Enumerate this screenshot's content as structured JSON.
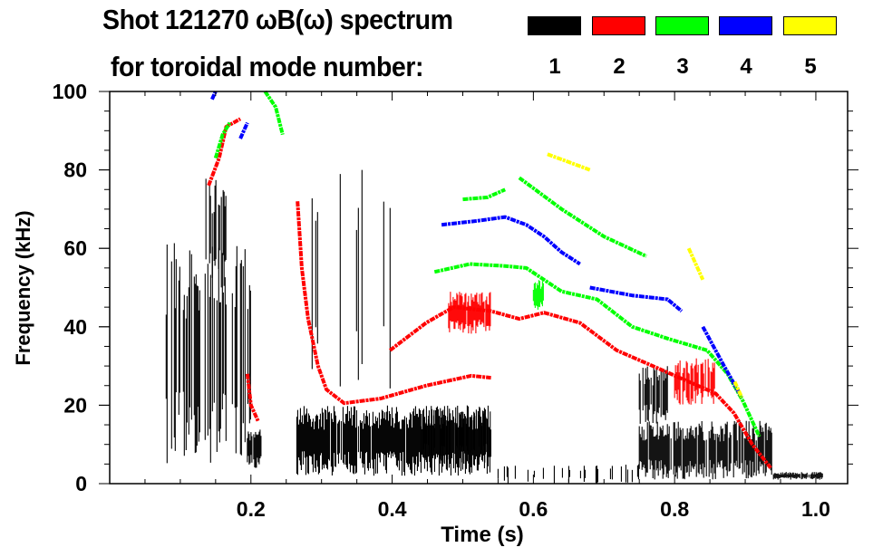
{
  "chart_data": {
    "type": "heatmap",
    "title": "Shot 121270 ωB(ω) spectrum",
    "subtitle": "for toroidal mode number:",
    "xlabel": "Time (s)",
    "ylabel": "Frequency (kHz)",
    "xlim": [
      0,
      1.045
    ],
    "ylim": [
      0,
      100
    ],
    "xticks": [
      0.2,
      0.4,
      0.6,
      0.8,
      1.0
    ],
    "xtick_labels": [
      "0.2",
      "0.4",
      "0.6",
      "0.8",
      "1.0"
    ],
    "yticks": [
      0,
      20,
      40,
      60,
      80,
      100
    ],
    "ytick_labels": [
      "0",
      "20",
      "40",
      "60",
      "80",
      "100"
    ],
    "legend": {
      "placement": "top-right",
      "entries": [
        {
          "mode": "1",
          "color": "#000000"
        },
        {
          "mode": "2",
          "color": "#ff0000"
        },
        {
          "mode": "3",
          "color": "#00ff00"
        },
        {
          "mode": "4",
          "color": "#0000ff"
        },
        {
          "mode": "5",
          "color": "#ffff00"
        }
      ]
    },
    "series": [
      {
        "name": "n=1",
        "color": "#000000",
        "blobs": [
          {
            "t": [
              0.08,
              0.2
            ],
            "f": [
              5,
              62
            ],
            "density": 0.5
          },
          {
            "t": [
              0.135,
              0.165
            ],
            "f": [
              50,
              78
            ],
            "density": 0.6
          },
          {
            "t": [
              0.195,
              0.215
            ],
            "f": [
              4,
              14
            ],
            "density": 0.9
          },
          {
            "t": [
              0.265,
              0.54
            ],
            "f": [
              2,
              20
            ],
            "density": 0.95
          },
          {
            "t": [
              0.27,
              0.4
            ],
            "f": [
              20,
              80
            ],
            "density": 0.12
          },
          {
            "t": [
              0.44,
              0.54
            ],
            "f": [
              5,
              20
            ],
            "density": 0.7
          },
          {
            "t": [
              0.75,
              0.94
            ],
            "f": [
              1,
              16
            ],
            "density": 0.85
          },
          {
            "t": [
              0.75,
              0.79
            ],
            "f": [
              15,
              30
            ],
            "density": 0.8
          },
          {
            "t": [
              0.94,
              1.01
            ],
            "f": [
              1,
              3
            ],
            "density": 0.9
          },
          {
            "t": [
              0.55,
              0.75
            ],
            "f": [
              0,
              5
            ],
            "density": 0.15
          }
        ],
        "tracks": []
      },
      {
        "name": "n=2",
        "color": "#ff0000",
        "blobs": [
          {
            "t": [
              0.48,
              0.54
            ],
            "f": [
              38,
              49
            ],
            "density": 0.9
          },
          {
            "t": [
              0.8,
              0.86
            ],
            "f": [
              20,
              32
            ],
            "density": 0.7
          }
        ],
        "tracks": [
          [
            [
              0.266,
              72
            ],
            [
              0.272,
              55
            ],
            [
              0.281,
              42
            ],
            [
              0.295,
              30
            ],
            [
              0.307,
              24
            ],
            [
              0.332,
              20.5
            ],
            [
              0.384,
              21.7
            ],
            [
              0.448,
              25
            ],
            [
              0.512,
              27.5
            ],
            [
              0.54,
              27
            ]
          ],
          [
            [
              0.397,
              34
            ],
            [
              0.448,
              41
            ],
            [
              0.487,
              45
            ],
            [
              0.54,
              44
            ],
            [
              0.58,
              42
            ],
            [
              0.615,
              43.6
            ],
            [
              0.666,
              41
            ],
            [
              0.718,
              34
            ],
            [
              0.769,
              30
            ],
            [
              0.82,
              26
            ],
            [
              0.858,
              23
            ],
            [
              0.884,
              18
            ],
            [
              0.91,
              10
            ],
            [
              0.936,
              4
            ]
          ],
          [
            [
              0.14,
              76
            ],
            [
              0.155,
              83
            ],
            [
              0.165,
              91
            ],
            [
              0.185,
              93
            ]
          ],
          [
            [
              0.195,
              28
            ],
            [
              0.2,
              20
            ],
            [
              0.21,
              16
            ]
          ]
        ]
      },
      {
        "name": "n=3",
        "color": "#00ff00",
        "blobs": [
          {
            "t": [
              0.6,
              0.615
            ],
            "f": [
              44,
              52
            ],
            "density": 0.9
          }
        ],
        "tracks": [
          [
            [
              0.5,
              72.5
            ],
            [
              0.535,
              73
            ],
            [
              0.56,
              75
            ]
          ],
          [
            [
              0.46,
              54
            ],
            [
              0.51,
              56
            ],
            [
              0.56,
              55.5
            ],
            [
              0.59,
              55
            ],
            [
              0.64,
              49
            ],
            [
              0.69,
              47
            ],
            [
              0.74,
              40
            ],
            [
              0.79,
              37
            ],
            [
              0.846,
              34
            ],
            [
              0.875,
              28
            ],
            [
              0.897,
              21
            ],
            [
              0.92,
              12
            ]
          ],
          [
            [
              0.58,
              78
            ],
            [
              0.64,
              70
            ],
            [
              0.7,
              63
            ],
            [
              0.76,
              58
            ]
          ],
          [
            [
              0.15,
              83
            ],
            [
              0.16,
              89
            ],
            [
              0.17,
              92
            ]
          ],
          [
            [
              0.22,
              100
            ],
            [
              0.235,
              96
            ],
            [
              0.245,
              89
            ]
          ]
        ]
      },
      {
        "name": "n=4",
        "color": "#0000ff",
        "blobs": [],
        "tracks": [
          [
            [
              0.47,
              66
            ],
            [
              0.52,
              67
            ],
            [
              0.56,
              68
            ],
            [
              0.59,
              66
            ],
            [
              0.615,
              63
            ],
            [
              0.64,
              59
            ],
            [
              0.666,
              56
            ]
          ],
          [
            [
              0.68,
              50
            ],
            [
              0.74,
              48
            ],
            [
              0.79,
              47
            ],
            [
              0.81,
              44
            ]
          ],
          [
            [
              0.84,
              40
            ],
            [
              0.87,
              30
            ],
            [
              0.895,
              22
            ]
          ],
          [
            [
              0.145,
              98
            ],
            [
              0.15,
              100
            ]
          ],
          [
            [
              0.185,
              88
            ],
            [
              0.195,
              92
            ]
          ]
        ]
      },
      {
        "name": "n=5",
        "color": "#ffff00",
        "blobs": [],
        "tracks": [
          [
            [
              0.62,
              84
            ],
            [
              0.65,
              82
            ],
            [
              0.68,
              80
            ]
          ],
          [
            [
              0.82,
              60
            ],
            [
              0.83,
              56
            ],
            [
              0.84,
              52
            ]
          ],
          [
            [
              0.885,
              26
            ],
            [
              0.895,
              22
            ]
          ]
        ]
      }
    ]
  }
}
